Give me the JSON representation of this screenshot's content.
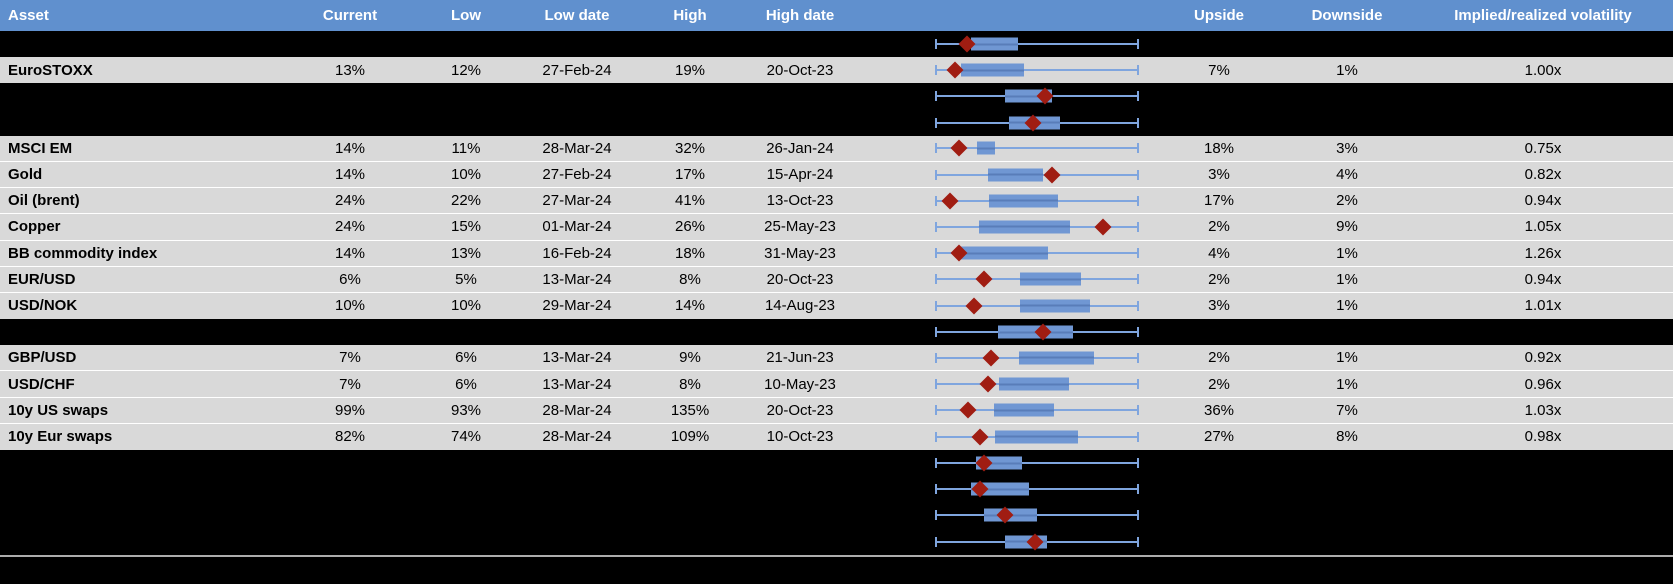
{
  "colors": {
    "header_bg": "#6090CE",
    "header_text": "#FFFFFF",
    "row_gray": "#D9D9D9",
    "row_black": "#000000",
    "box_fill": "#7097D3",
    "whisker": "#7FA5DE",
    "diamond": "#A01D12",
    "separator": "#ACACAC",
    "body_text": "#000000"
  },
  "chart_data": {
    "type": "table",
    "columns": [
      "Asset",
      "Current",
      "Low",
      "Low date",
      "High",
      "High date",
      "",
      "Upside",
      "Downside",
      "Implied/realized volatility"
    ],
    "boxplot_legend": "whisker = low-high range (normalized full width), box = interquartile band, red diamond = current level",
    "rows": [
      {
        "kind": "blank",
        "bg": "black",
        "box": {
          "lo": 0,
          "hi": 1,
          "q1": 0.181,
          "q3": 0.412,
          "d": 0.157
        }
      },
      {
        "kind": "data",
        "bg": "gray",
        "asset": "EuroSTOXX",
        "current": "13%",
        "low": "12%",
        "low_date": "27-Feb-24",
        "high": "19%",
        "high_date": "20-Oct-23",
        "upside": "7%",
        "downside": "1%",
        "vol": "1.00x",
        "box": {
          "lo": 0,
          "hi": 1,
          "q1": 0.132,
          "q3": 0.441,
          "d": 0.098
        }
      },
      {
        "kind": "blank",
        "bg": "black",
        "box": {
          "lo": 0,
          "hi": 1,
          "q1": 0.343,
          "q3": 0.574,
          "d": 0.539
        }
      },
      {
        "kind": "blank",
        "bg": "black",
        "box": {
          "lo": 0,
          "hi": 1,
          "q1": 0.363,
          "q3": 0.613,
          "d": 0.485
        }
      },
      {
        "kind": "data",
        "bg": "gray",
        "asset": "MSCI EM",
        "current": "14%",
        "low": "11%",
        "low_date": "28-Mar-24",
        "high": "32%",
        "high_date": "26-Jan-24",
        "upside": "18%",
        "downside": "3%",
        "vol": "0.75x",
        "box": {
          "lo": 0,
          "hi": 1,
          "q1": 0.206,
          "q3": 0.294,
          "d": 0.118
        }
      },
      {
        "kind": "data",
        "bg": "gray",
        "asset": "Gold",
        "current": "14%",
        "low": "10%",
        "low_date": "27-Feb-24",
        "high": "17%",
        "high_date": "15-Apr-24",
        "upside": "3%",
        "downside": "4%",
        "vol": "0.82x",
        "box": {
          "lo": 0,
          "hi": 1,
          "q1": 0.26,
          "q3": 0.534,
          "d": 0.574
        }
      },
      {
        "kind": "data",
        "bg": "gray",
        "asset": "Oil (brent)",
        "current": "24%",
        "low": "22%",
        "low_date": "27-Mar-24",
        "high": "41%",
        "high_date": "13-Oct-23",
        "upside": "17%",
        "downside": "2%",
        "vol": "0.94x",
        "box": {
          "lo": 0,
          "hi": 1,
          "q1": 0.265,
          "q3": 0.603,
          "d": 0.078
        }
      },
      {
        "kind": "data",
        "bg": "gray",
        "asset": "Copper",
        "current": "24%",
        "low": "15%",
        "low_date": "01-Mar-24",
        "high": "26%",
        "high_date": "25-May-23",
        "upside": "2%",
        "downside": "9%",
        "vol": "1.05x",
        "box": {
          "lo": 0,
          "hi": 1,
          "q1": 0.216,
          "q3": 0.662,
          "d": 0.824
        }
      },
      {
        "kind": "data",
        "bg": "gray",
        "asset": "BB commodity index",
        "current": "14%",
        "low": "13%",
        "low_date": "16-Feb-24",
        "high": "18%",
        "high_date": "31-May-23",
        "upside": "4%",
        "downside": "1%",
        "vol": "1.26x",
        "box": {
          "lo": 0,
          "hi": 1,
          "q1": 0.127,
          "q3": 0.559,
          "d": 0.118
        }
      },
      {
        "kind": "data",
        "bg": "gray",
        "asset": "EUR/USD",
        "current": "6%",
        "low": "5%",
        "low_date": "13-Mar-24",
        "high": "8%",
        "high_date": "20-Oct-23",
        "upside": "2%",
        "downside": "1%",
        "vol": "0.94x",
        "box": {
          "lo": 0,
          "hi": 1,
          "q1": 0.417,
          "q3": 0.716,
          "d": 0.24
        }
      },
      {
        "kind": "data",
        "bg": "gray",
        "asset": "USD/NOK",
        "current": "10%",
        "low": "10%",
        "low_date": "29-Mar-24",
        "high": "14%",
        "high_date": "14-Aug-23",
        "upside": "3%",
        "downside": "1%",
        "vol": "1.01x",
        "box": {
          "lo": 0,
          "hi": 1,
          "q1": 0.417,
          "q3": 0.76,
          "d": 0.191
        }
      },
      {
        "kind": "blank",
        "bg": "black",
        "box": {
          "lo": 0,
          "hi": 1,
          "q1": 0.309,
          "q3": 0.681,
          "d": 0.534
        }
      },
      {
        "kind": "data",
        "bg": "gray",
        "asset": "GBP/USD",
        "current": "7%",
        "low": "6%",
        "low_date": "13-Mar-24",
        "high": "9%",
        "high_date": "21-Jun-23",
        "upside": "2%",
        "downside": "1%",
        "vol": "0.92x",
        "box": {
          "lo": 0,
          "hi": 1,
          "q1": 0.412,
          "q3": 0.784,
          "d": 0.279
        }
      },
      {
        "kind": "data",
        "bg": "gray",
        "asset": "USD/CHF",
        "current": "7%",
        "low": "6%",
        "low_date": "13-Mar-24",
        "high": "8%",
        "high_date": "10-May-23",
        "upside": "2%",
        "downside": "1%",
        "vol": "0.96x",
        "box": {
          "lo": 0,
          "hi": 1,
          "q1": 0.314,
          "q3": 0.657,
          "d": 0.26
        }
      },
      {
        "kind": "data",
        "bg": "gray",
        "asset": "10y US swaps",
        "current": "99%",
        "low": "93%",
        "low_date": "28-Mar-24",
        "high": "135%",
        "high_date": "20-Oct-23",
        "upside": "36%",
        "downside": "7%",
        "vol": "1.03x",
        "box": {
          "lo": 0,
          "hi": 1,
          "q1": 0.289,
          "q3": 0.583,
          "d": 0.162
        }
      },
      {
        "kind": "data",
        "bg": "gray",
        "asset": "10y Eur swaps",
        "current": "82%",
        "low": "74%",
        "low_date": "28-Mar-24",
        "high": "109%",
        "high_date": "10-Oct-23",
        "upside": "27%",
        "downside": "8%",
        "vol": "0.98x",
        "box": {
          "lo": 0,
          "hi": 1,
          "q1": 0.294,
          "q3": 0.701,
          "d": 0.221
        }
      },
      {
        "kind": "blank",
        "bg": "black",
        "box": {
          "lo": 0,
          "hi": 1,
          "q1": 0.201,
          "q3": 0.431,
          "d": 0.24
        }
      },
      {
        "kind": "blank",
        "bg": "black",
        "box": {
          "lo": 0,
          "hi": 1,
          "q1": 0.181,
          "q3": 0.466,
          "d": 0.225
        }
      },
      {
        "kind": "blank",
        "bg": "black",
        "box": {
          "lo": 0,
          "hi": 1,
          "q1": 0.24,
          "q3": 0.5,
          "d": 0.343
        }
      },
      {
        "kind": "blank",
        "bg": "black",
        "box": {
          "lo": 0,
          "hi": 1,
          "q1": 0.343,
          "q3": 0.549,
          "d": 0.49
        }
      }
    ]
  }
}
